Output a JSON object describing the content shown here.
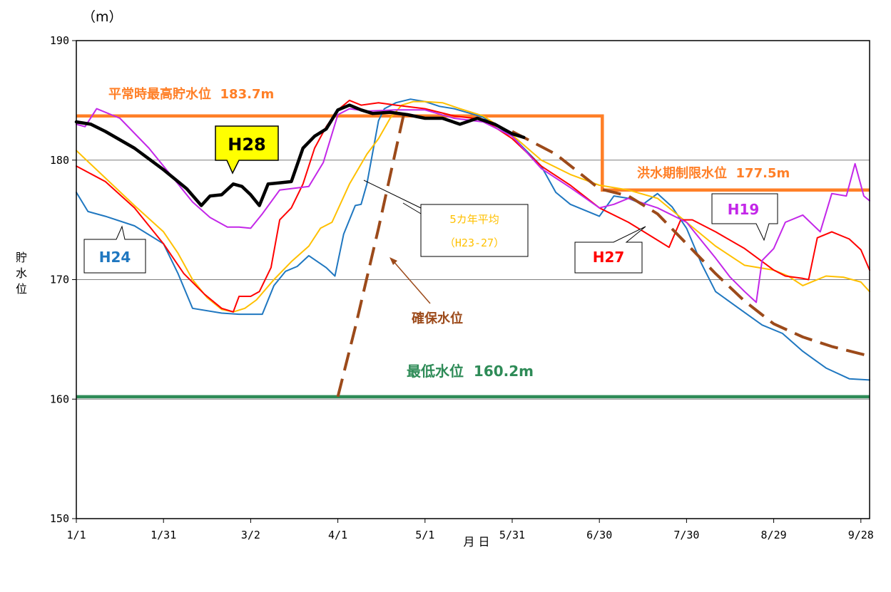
{
  "chart_data": {
    "type": "line",
    "y_unit": "（m）",
    "ylabel": "貯水位",
    "xlabel": "月 日",
    "ylim": [
      150,
      190
    ],
    "xlim": [
      "1/1",
      "9/30"
    ],
    "yticks": [
      150,
      160,
      170,
      180,
      190
    ],
    "xticks": [
      {
        "label": "1/1",
        "day": 0
      },
      {
        "label": "1/31",
        "day": 30
      },
      {
        "label": "3/2",
        "day": 60
      },
      {
        "label": "4/1",
        "day": 90
      },
      {
        "label": "5/1",
        "day": 120
      },
      {
        "label": "5/31",
        "day": 150
      },
      {
        "label": "6/30",
        "day": 180
      },
      {
        "label": "7/30",
        "day": 210
      },
      {
        "label": "8/29",
        "day": 240
      },
      {
        "label": "9/28",
        "day": 270
      }
    ],
    "grid": "horizontal",
    "reference_lines": [
      {
        "label": "平常時最高貯水位  183.7m",
        "color": "#ff7f27",
        "segments": [
          [
            0,
            183.7
          ],
          [
            181,
            183.7
          ],
          [
            181,
            177.5
          ],
          [
            273,
            177.5
          ]
        ]
      },
      {
        "label": "洪水期制限水位  177.5m",
        "color": "#ff7f27"
      },
      {
        "label": "最低水位  160.2m",
        "color": "#2e8b57",
        "segments": [
          [
            0,
            160.2
          ],
          [
            273,
            160.2
          ]
        ]
      }
    ],
    "series": [
      {
        "name": "H28",
        "color": "#000000",
        "width": 4.5,
        "points": [
          [
            0,
            183.2
          ],
          [
            5,
            183.0
          ],
          [
            10,
            182.4
          ],
          [
            20,
            181.0
          ],
          [
            30,
            179.2
          ],
          [
            38,
            177.6
          ],
          [
            43,
            176.2
          ],
          [
            46,
            177.0
          ],
          [
            50,
            177.1
          ],
          [
            54,
            178.0
          ],
          [
            57,
            177.8
          ],
          [
            60,
            177.1
          ],
          [
            63,
            176.2
          ],
          [
            66,
            178.0
          ],
          [
            70,
            178.1
          ],
          [
            74,
            178.2
          ],
          [
            78,
            181.0
          ],
          [
            82,
            182.0
          ],
          [
            86,
            182.6
          ],
          [
            90,
            184.2
          ],
          [
            94,
            184.6
          ],
          [
            98,
            184.2
          ],
          [
            102,
            183.9
          ],
          [
            108,
            184.0
          ],
          [
            114,
            183.8
          ],
          [
            120,
            183.5
          ],
          [
            126,
            183.5
          ],
          [
            132,
            183.0
          ],
          [
            138,
            183.5
          ],
          [
            144,
            183.0
          ],
          [
            150,
            182.2
          ],
          [
            154,
            181.9
          ]
        ]
      },
      {
        "name": "H27",
        "color": "#ff0000",
        "width": 2,
        "points": [
          [
            0,
            179.5
          ],
          [
            10,
            178.2
          ],
          [
            20,
            176.0
          ],
          [
            30,
            173.0
          ],
          [
            37,
            170.5
          ],
          [
            44,
            168.8
          ],
          [
            50,
            167.6
          ],
          [
            54,
            167.3
          ],
          [
            56,
            168.6
          ],
          [
            60,
            168.6
          ],
          [
            63,
            169.0
          ],
          [
            67,
            171.0
          ],
          [
            70,
            175.0
          ],
          [
            74,
            176.0
          ],
          [
            78,
            178.0
          ],
          [
            82,
            181.0
          ],
          [
            86,
            182.8
          ],
          [
            90,
            184.2
          ],
          [
            94,
            185.0
          ],
          [
            98,
            184.6
          ],
          [
            104,
            184.8
          ],
          [
            110,
            184.6
          ],
          [
            120,
            184.3
          ],
          [
            130,
            183.7
          ],
          [
            140,
            183.4
          ],
          [
            150,
            181.8
          ],
          [
            160,
            179.5
          ],
          [
            170,
            177.9
          ],
          [
            180,
            176.0
          ],
          [
            190,
            174.8
          ],
          [
            200,
            173.3
          ],
          [
            204,
            172.7
          ],
          [
            208,
            175.0
          ],
          [
            212,
            175.0
          ],
          [
            220,
            174.0
          ],
          [
            230,
            172.6
          ],
          [
            240,
            170.8
          ],
          [
            244,
            170.3
          ],
          [
            250,
            170.1
          ],
          [
            252,
            170.0
          ],
          [
            255,
            173.5
          ],
          [
            260,
            174.0
          ],
          [
            266,
            173.4
          ],
          [
            270,
            172.5
          ],
          [
            273,
            170.8
          ]
        ]
      },
      {
        "name": "H24",
        "color": "#1f77c0",
        "width": 2,
        "points": [
          [
            0,
            177.3
          ],
          [
            4,
            175.7
          ],
          [
            10,
            175.3
          ],
          [
            20,
            174.5
          ],
          [
            30,
            173.0
          ],
          [
            35,
            170.5
          ],
          [
            40,
            167.6
          ],
          [
            50,
            167.2
          ],
          [
            56,
            167.1
          ],
          [
            64,
            167.1
          ],
          [
            68,
            169.5
          ],
          [
            72,
            170.7
          ],
          [
            76,
            171.1
          ],
          [
            80,
            172.0
          ],
          [
            86,
            171.0
          ],
          [
            89,
            170.3
          ],
          [
            92,
            173.8
          ],
          [
            96,
            176.2
          ],
          [
            98,
            176.3
          ],
          [
            100,
            178.0
          ],
          [
            104,
            183.3
          ],
          [
            106,
            184.3
          ],
          [
            110,
            184.8
          ],
          [
            115,
            185.1
          ],
          [
            120,
            184.9
          ],
          [
            125,
            184.5
          ],
          [
            130,
            184.3
          ],
          [
            140,
            183.6
          ],
          [
            150,
            182.0
          ],
          [
            160,
            179.5
          ],
          [
            165,
            177.3
          ],
          [
            170,
            176.3
          ],
          [
            175,
            175.8
          ],
          [
            180,
            175.3
          ],
          [
            185,
            177.0
          ],
          [
            190,
            176.8
          ],
          [
            195,
            176.3
          ],
          [
            200,
            177.2
          ],
          [
            205,
            176.1
          ],
          [
            210,
            174.3
          ],
          [
            215,
            171.4
          ],
          [
            220,
            169.0
          ],
          [
            228,
            167.6
          ],
          [
            236,
            166.2
          ],
          [
            243,
            165.5
          ],
          [
            250,
            164.0
          ],
          [
            258,
            162.6
          ],
          [
            266,
            161.7
          ],
          [
            273,
            161.6
          ]
        ]
      },
      {
        "name": "5カ年平均\n（H23-27）",
        "color": "#ffc000",
        "width": 2,
        "points": [
          [
            0,
            180.8
          ],
          [
            10,
            178.5
          ],
          [
            20,
            176.2
          ],
          [
            30,
            174.0
          ],
          [
            35,
            172.2
          ],
          [
            40,
            170.0
          ],
          [
            45,
            168.5
          ],
          [
            50,
            167.5
          ],
          [
            54,
            167.3
          ],
          [
            58,
            167.6
          ],
          [
            62,
            168.3
          ],
          [
            68,
            170.0
          ],
          [
            74,
            171.5
          ],
          [
            80,
            172.8
          ],
          [
            84,
            174.3
          ],
          [
            88,
            174.8
          ],
          [
            94,
            178.0
          ],
          [
            100,
            180.5
          ],
          [
            104,
            181.8
          ],
          [
            108,
            183.5
          ],
          [
            112,
            184.6
          ],
          [
            116,
            184.9
          ],
          [
            120,
            184.9
          ],
          [
            126,
            184.8
          ],
          [
            132,
            184.3
          ],
          [
            140,
            183.7
          ],
          [
            150,
            182.1
          ],
          [
            160,
            180.0
          ],
          [
            170,
            178.8
          ],
          [
            180,
            177.9
          ],
          [
            190,
            177.5
          ],
          [
            200,
            176.8
          ],
          [
            210,
            174.8
          ],
          [
            220,
            172.8
          ],
          [
            230,
            171.2
          ],
          [
            240,
            170.8
          ],
          [
            245,
            170.3
          ],
          [
            250,
            169.5
          ],
          [
            254,
            169.9
          ],
          [
            258,
            170.3
          ],
          [
            264,
            170.2
          ],
          [
            270,
            169.8
          ],
          [
            273,
            169.0
          ]
        ]
      },
      {
        "name": "H19",
        "color": "#c327e8",
        "width": 2,
        "points": [
          [
            0,
            183.0
          ],
          [
            3,
            182.8
          ],
          [
            7,
            184.3
          ],
          [
            15,
            183.5
          ],
          [
            25,
            181.0
          ],
          [
            35,
            178.0
          ],
          [
            40,
            176.5
          ],
          [
            46,
            175.2
          ],
          [
            52,
            174.4
          ],
          [
            56,
            174.4
          ],
          [
            60,
            174.3
          ],
          [
            64,
            175.5
          ],
          [
            70,
            177.5
          ],
          [
            80,
            177.8
          ],
          [
            85,
            179.8
          ],
          [
            90,
            183.8
          ],
          [
            94,
            184.3
          ],
          [
            100,
            184.1
          ],
          [
            110,
            184.2
          ],
          [
            120,
            184.2
          ],
          [
            130,
            183.5
          ],
          [
            140,
            183.2
          ],
          [
            150,
            182.0
          ],
          [
            160,
            179.3
          ],
          [
            170,
            177.7
          ],
          [
            180,
            176.0
          ],
          [
            185,
            176.3
          ],
          [
            190,
            176.8
          ],
          [
            200,
            176.0
          ],
          [
            210,
            174.8
          ],
          [
            220,
            171.8
          ],
          [
            225,
            170.2
          ],
          [
            230,
            169.0
          ],
          [
            234,
            168.1
          ],
          [
            236,
            171.6
          ],
          [
            240,
            172.6
          ],
          [
            244,
            174.8
          ],
          [
            250,
            175.4
          ],
          [
            256,
            174.0
          ],
          [
            260,
            177.2
          ],
          [
            265,
            177.0
          ],
          [
            268,
            179.7
          ],
          [
            271,
            177.0
          ],
          [
            273,
            176.6
          ]
        ]
      },
      {
        "name": "確保水位",
        "color": "#9c4a1a",
        "width": 4,
        "dashed": true,
        "points": [
          [
            90,
            160.2
          ],
          [
            96,
            166.0
          ],
          [
            104,
            174.3
          ],
          [
            113,
            184.2
          ]
        ]
      },
      {
        "name": "確保水位-tail",
        "color": "#9c4a1a",
        "width": 4,
        "dashed": true,
        "points": [
          [
            150,
            182.4
          ],
          [
            165,
            180.5
          ],
          [
            180,
            177.6
          ],
          [
            190,
            177.0
          ],
          [
            200,
            175.5
          ],
          [
            210,
            173.0
          ],
          [
            220,
            170.5
          ],
          [
            230,
            168.2
          ],
          [
            240,
            166.3
          ],
          [
            250,
            165.2
          ],
          [
            260,
            164.4
          ],
          [
            273,
            163.6
          ]
        ]
      }
    ],
    "annotations": [
      {
        "text": "H28",
        "color": "#000000",
        "bg": "#ffff00"
      },
      {
        "text": "H24",
        "color": "#1f77c0"
      },
      {
        "text": "H27",
        "color": "#ff0000"
      },
      {
        "text": "H19",
        "color": "#c327e8"
      },
      {
        "text": "5カ年平均",
        "color": "#ffc000"
      },
      {
        "text": "（H23-27）",
        "color": "#ffc000"
      },
      {
        "text": "確保水位",
        "color": "#9c4a1a"
      }
    ]
  }
}
